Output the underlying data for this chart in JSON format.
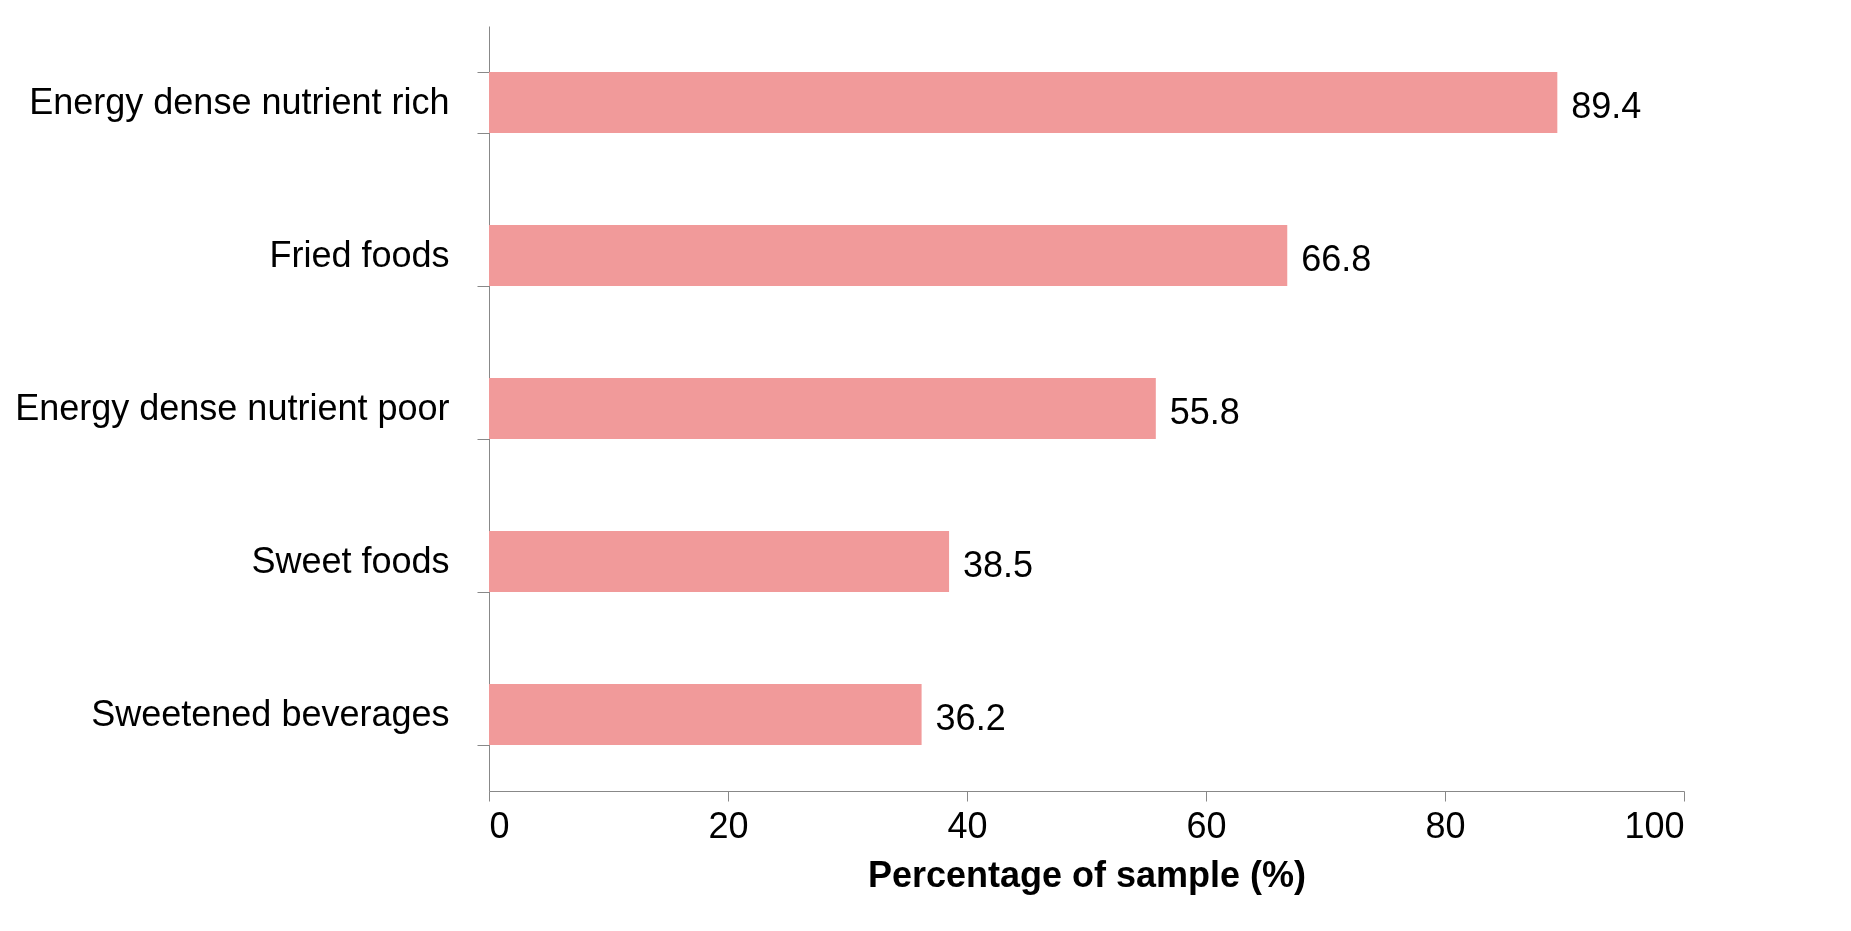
{
  "chart_data": {
    "type": "bar",
    "orientation": "horizontal",
    "xlabel": "Percentage of sample (%)",
    "categories": [
      "Energy dense nutrient rich",
      "Fried foods",
      "Energy dense nutrient poor",
      "Sweet foods",
      "Sweetened beverages"
    ],
    "values": [
      89.4,
      66.8,
      55.8,
      38.5,
      36.2
    ],
    "color": "#f19a9a",
    "xlim": [
      0,
      100
    ],
    "xticks": [
      0,
      20,
      40,
      60,
      80,
      100
    ],
    "grid": false,
    "data_labels": true
  }
}
